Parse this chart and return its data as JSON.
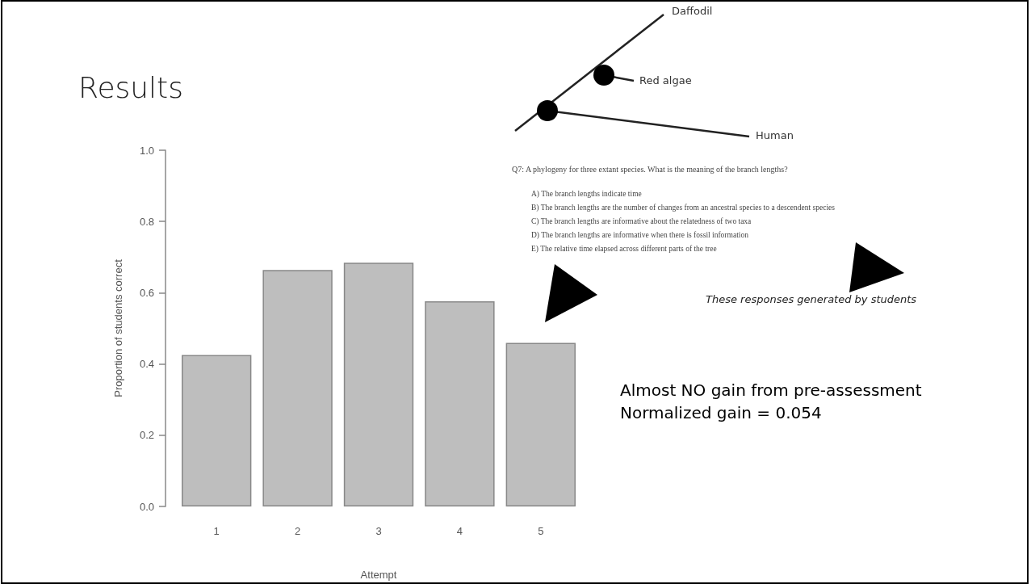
{
  "chart_data": {
    "type": "bar",
    "title": "Results",
    "xlabel": "Attempt",
    "ylabel": "Proportion of students correct",
    "categories": [
      "1",
      "2",
      "3",
      "4",
      "5"
    ],
    "values": [
      0.425,
      0.664,
      0.684,
      0.576,
      0.459
    ],
    "color": "#bebebe",
    "ylim": [
      0,
      1
    ],
    "yticks": [
      {
        "value": 0,
        "label": "0.0"
      },
      {
        "value": 0.2,
        "label": "0.2"
      },
      {
        "value": 0.4,
        "label": "0.4"
      },
      {
        "value": 0.6,
        "label": "0.6"
      },
      {
        "value": 0.8,
        "label": "0.8"
      },
      {
        "value": 1,
        "label": "1.0"
      }
    ],
    "grid": false,
    "annotations": [
      "Daffodil",
      "Red algae",
      "Human",
      "Q7: A phylogeny for three extant species. What is the meaning of the branch lengths?",
      "A) The branch lengths indicate time",
      "B) The branch lengths are the number of changes from an ancestral species to a descendent species",
      "C) The branch lengths are informative about the relatedness of two taxa",
      "D) The branch lengths are informative when there is fossil information",
      "E) The relative time elapsed across different parts of the tree",
      "These responses generated by students",
      "Almost NO gain from pre-assessment",
      "Normalized gain = 0.054"
    ]
  }
}
